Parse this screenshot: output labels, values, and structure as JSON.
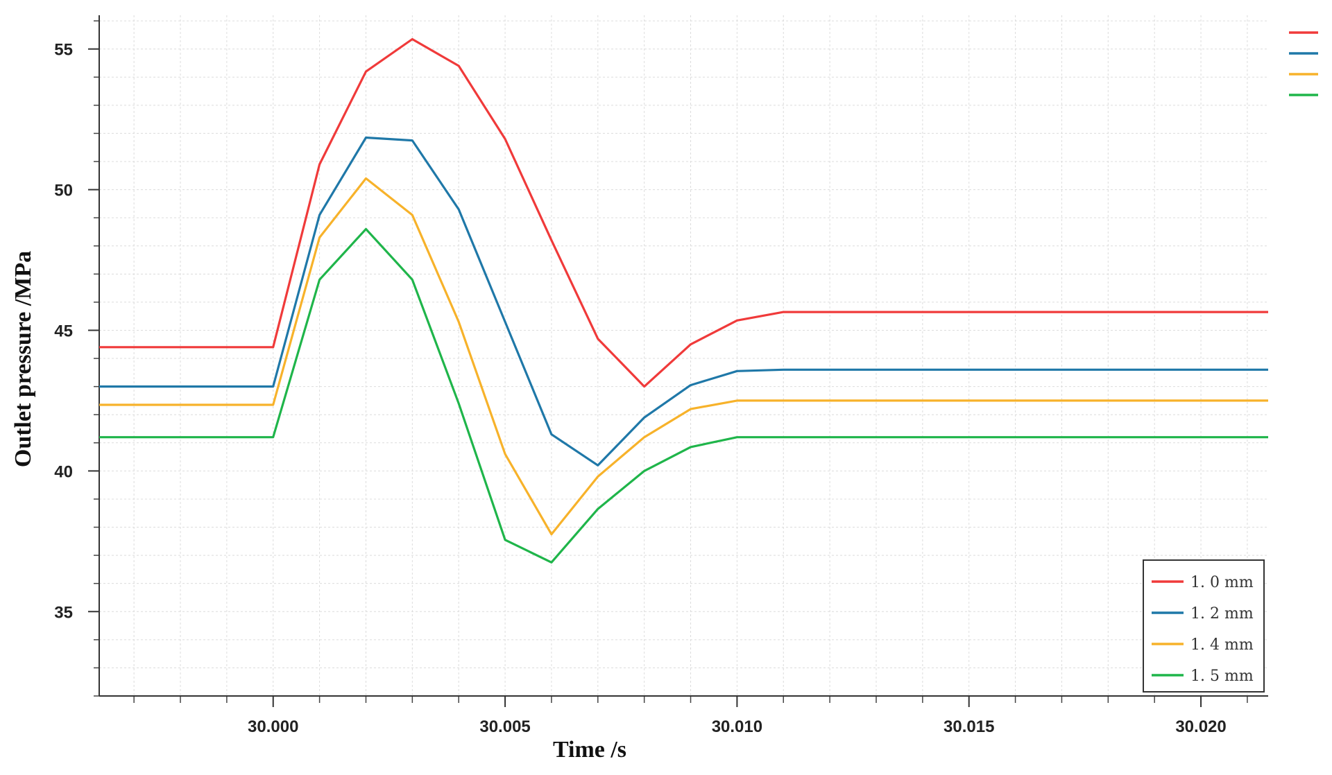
{
  "chart_data": {
    "type": "line",
    "xlabel": "Time /s",
    "ylabel": "Outlet pressure /MPa",
    "xlim": [
      29.99625,
      30.02145
    ],
    "ylim": [
      32.0,
      56.2
    ],
    "x_ticks": [
      "30.000",
      "30.005",
      "30.010",
      "30.015",
      "30.020"
    ],
    "x_tick_values": [
      30.0,
      30.005,
      30.01,
      30.015,
      30.02
    ],
    "y_ticks": [
      "35",
      "40",
      "45",
      "50",
      "55"
    ],
    "y_tick_values": [
      35,
      40,
      45,
      50,
      55
    ],
    "grid": true,
    "legend_placement": "bottom-right",
    "x": [
      29.99625,
      30.0,
      30.001,
      30.002,
      30.003,
      30.004,
      30.005,
      30.006,
      30.007,
      30.008,
      30.009,
      30.01,
      30.011,
      30.02145
    ],
    "series": [
      {
        "name": "1. 0  mm",
        "color": "#f03a3a",
        "values": [
          44.4,
          44.4,
          50.9,
          54.2,
          55.35,
          54.4,
          51.8,
          48.2,
          44.7,
          43.0,
          44.5,
          45.35,
          45.65,
          45.65
        ]
      },
      {
        "name": "1. 2  mm",
        "color": "#1f78a8",
        "values": [
          43.0,
          43.0,
          49.1,
          51.85,
          51.75,
          49.3,
          45.3,
          41.3,
          40.2,
          41.9,
          43.05,
          43.55,
          43.6,
          43.6
        ]
      },
      {
        "name": "1. 4  mm",
        "color": "#f7b22a",
        "values": [
          42.35,
          42.35,
          48.3,
          50.4,
          49.1,
          45.3,
          40.6,
          37.75,
          39.8,
          41.2,
          42.2,
          42.5,
          42.5,
          42.5
        ]
      },
      {
        "name": "1. 5  mm",
        "color": "#1fb54a",
        "values": [
          41.2,
          41.2,
          46.8,
          48.6,
          46.8,
          42.4,
          37.55,
          36.75,
          38.65,
          40.0,
          40.85,
          41.2,
          41.2,
          41.2
        ]
      }
    ],
    "top_right_markers": [
      "#f03a3a",
      "#1f78a8",
      "#f7b22a",
      "#1fb54a"
    ]
  }
}
